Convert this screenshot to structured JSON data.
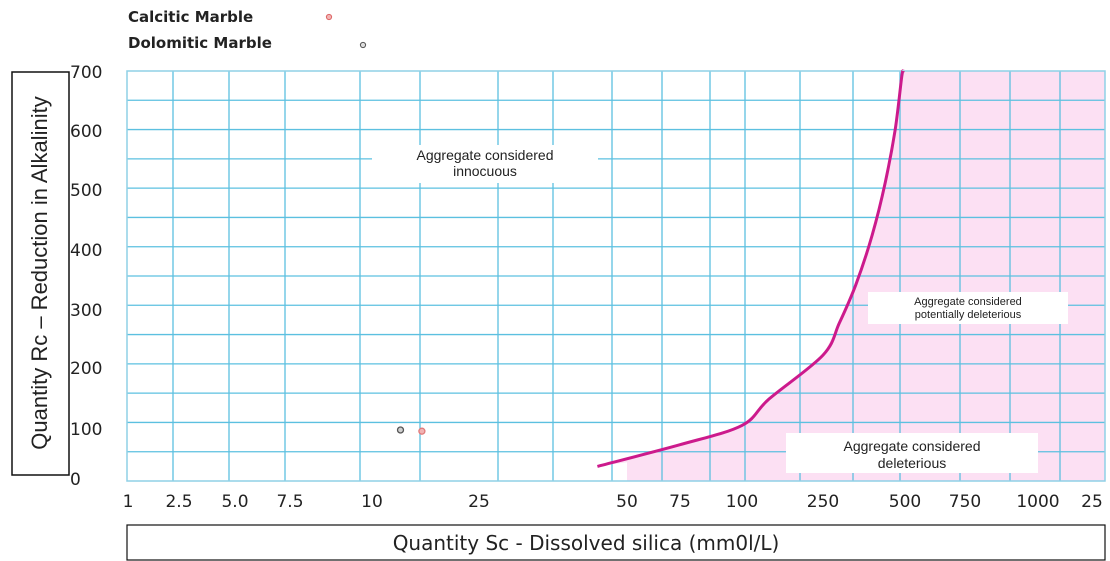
{
  "chart_data": {
    "type": "scatter",
    "title": "",
    "xlabel": "Quantity Sc - Dissolved silica (mm0l/L)",
    "ylabel": "Quantity Rc – Reduction in Alkalinity",
    "ylim": [
      0,
      700
    ],
    "y_ticks": [
      0,
      100,
      200,
      300,
      400,
      500,
      600,
      700
    ],
    "x_ticks": [
      "1",
      "2.5",
      "5.0",
      "7.5",
      "10",
      "25",
      "50",
      "75",
      "100",
      "250",
      "500",
      "750",
      "1000",
      "25"
    ],
    "grid": true,
    "legend_position": "top-left",
    "series": [
      {
        "name": "Calcitic Marble",
        "color": "#e07a7a",
        "points": [
          {
            "x": 17,
            "y": 85
          }
        ]
      },
      {
        "name": "Dolomitic Marble",
        "color": "#555555",
        "points": [
          {
            "x": 14,
            "y": 87
          }
        ]
      }
    ],
    "boundary_curve": {
      "color": "#cc1a8c",
      "points": [
        {
          "x": 45,
          "y": 25
        },
        {
          "x": 75,
          "y": 62
        },
        {
          "x": 100,
          "y": 95
        },
        {
          "x": 150,
          "y": 140
        },
        {
          "x": 250,
          "y": 215
        },
        {
          "x": 300,
          "y": 270
        },
        {
          "x": 350,
          "y": 335
        },
        {
          "x": 400,
          "y": 420
        },
        {
          "x": 440,
          "y": 510
        },
        {
          "x": 470,
          "y": 600
        },
        {
          "x": 490,
          "y": 690
        },
        {
          "x": 495,
          "y": 700
        }
      ]
    },
    "shaded_region_color": "#fce0f3",
    "annotations": [
      {
        "lines": [
          "Aggregate considered",
          "innocuous"
        ]
      },
      {
        "lines": [
          "Aggregate considered",
          "potentially deleterious"
        ]
      },
      {
        "lines": [
          "Aggregate considered",
          "deleterious"
        ]
      }
    ]
  }
}
